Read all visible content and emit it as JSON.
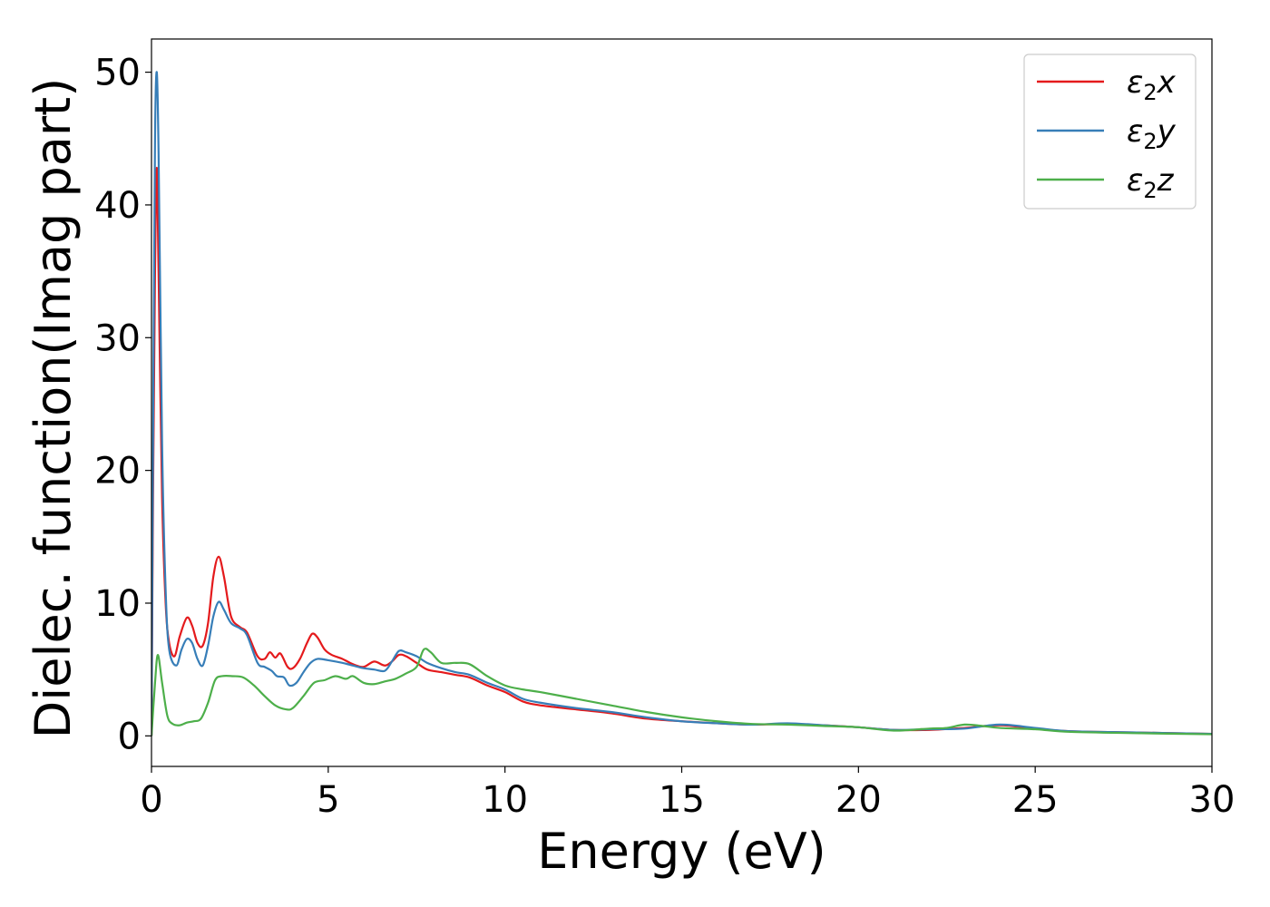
{
  "chart_data": {
    "type": "line",
    "title": "",
    "xlabel": "Energy (eV)",
    "ylabel": "Dielec. function(Imag part)",
    "xlim": [
      0,
      30
    ],
    "ylim": [
      -2.3,
      52.5
    ],
    "xticks": [
      0,
      5,
      10,
      15,
      20,
      25,
      30
    ],
    "yticks": [
      0,
      10,
      20,
      30,
      40,
      50
    ],
    "grid": false,
    "legend_position": "top-right",
    "series": [
      {
        "name": "ε₂x",
        "legend_main": "ε",
        "legend_sub": "2",
        "legend_suffix": "x",
        "color": "#e41a1c",
        "points": [
          [
            0,
            0
          ],
          [
            0.05,
            20
          ],
          [
            0.1,
            35
          ],
          [
            0.15,
            42.8
          ],
          [
            0.2,
            35
          ],
          [
            0.3,
            18
          ],
          [
            0.4,
            10
          ],
          [
            0.5,
            7
          ],
          [
            0.65,
            6
          ],
          [
            0.8,
            7.5
          ],
          [
            1.0,
            8.9
          ],
          [
            1.15,
            8.3
          ],
          [
            1.3,
            7
          ],
          [
            1.45,
            6.8
          ],
          [
            1.6,
            8.5
          ],
          [
            1.75,
            12
          ],
          [
            1.9,
            13.5
          ],
          [
            2.05,
            12
          ],
          [
            2.25,
            9
          ],
          [
            2.5,
            8.2
          ],
          [
            2.7,
            7.8
          ],
          [
            3.0,
            6.0
          ],
          [
            3.2,
            5.8
          ],
          [
            3.35,
            6.3
          ],
          [
            3.5,
            5.9
          ],
          [
            3.65,
            6.2
          ],
          [
            3.85,
            5.2
          ],
          [
            4.0,
            5.1
          ],
          [
            4.2,
            5.8
          ],
          [
            4.4,
            7
          ],
          [
            4.55,
            7.7
          ],
          [
            4.7,
            7.4
          ],
          [
            4.9,
            6.5
          ],
          [
            5.1,
            6.1
          ],
          [
            5.4,
            5.8
          ],
          [
            5.7,
            5.4
          ],
          [
            6.0,
            5.2
          ],
          [
            6.3,
            5.6
          ],
          [
            6.6,
            5.3
          ],
          [
            6.8,
            5.6
          ],
          [
            7.0,
            6.1
          ],
          [
            7.2,
            6.0
          ],
          [
            7.5,
            5.5
          ],
          [
            7.8,
            5.0
          ],
          [
            8.2,
            4.8
          ],
          [
            8.6,
            4.6
          ],
          [
            9.0,
            4.4
          ],
          [
            9.5,
            3.8
          ],
          [
            10.0,
            3.3
          ],
          [
            10.5,
            2.6
          ],
          [
            11.0,
            2.3
          ],
          [
            12.0,
            2.0
          ],
          [
            13.0,
            1.7
          ],
          [
            14.0,
            1.3
          ],
          [
            15.0,
            1.1
          ],
          [
            16.0,
            0.95
          ],
          [
            17.0,
            0.85
          ],
          [
            18.0,
            0.9
          ],
          [
            19.0,
            0.8
          ],
          [
            20.0,
            0.65
          ],
          [
            21.0,
            0.45
          ],
          [
            22.0,
            0.45
          ],
          [
            23.0,
            0.6
          ],
          [
            24.0,
            0.8
          ],
          [
            25.0,
            0.55
          ],
          [
            26.0,
            0.35
          ],
          [
            28.0,
            0.25
          ],
          [
            30.0,
            0.15
          ]
        ]
      },
      {
        "name": "ε₂y",
        "legend_main": "ε",
        "legend_sub": "2",
        "legend_suffix": "y",
        "color": "#377eb8",
        "points": [
          [
            0,
            0
          ],
          [
            0.05,
            25
          ],
          [
            0.1,
            45
          ],
          [
            0.15,
            50
          ],
          [
            0.2,
            44
          ],
          [
            0.3,
            22
          ],
          [
            0.4,
            11
          ],
          [
            0.5,
            6.5
          ],
          [
            0.7,
            5.3
          ],
          [
            0.85,
            6.5
          ],
          [
            1.0,
            7.3
          ],
          [
            1.15,
            7.0
          ],
          [
            1.3,
            5.8
          ],
          [
            1.45,
            5.3
          ],
          [
            1.6,
            6.8
          ],
          [
            1.75,
            9
          ],
          [
            1.9,
            10.1
          ],
          [
            2.05,
            9.5
          ],
          [
            2.25,
            8.5
          ],
          [
            2.5,
            8.1
          ],
          [
            2.7,
            7.6
          ],
          [
            3.0,
            5.5
          ],
          [
            3.2,
            5.2
          ],
          [
            3.4,
            4.9
          ],
          [
            3.55,
            4.5
          ],
          [
            3.75,
            4.4
          ],
          [
            3.9,
            3.8
          ],
          [
            4.1,
            4.0
          ],
          [
            4.3,
            4.8
          ],
          [
            4.5,
            5.5
          ],
          [
            4.7,
            5.8
          ],
          [
            5.0,
            5.7
          ],
          [
            5.4,
            5.5
          ],
          [
            5.7,
            5.3
          ],
          [
            6.0,
            5.1
          ],
          [
            6.3,
            5.0
          ],
          [
            6.6,
            4.9
          ],
          [
            6.8,
            5.6
          ],
          [
            7.0,
            6.4
          ],
          [
            7.2,
            6.3
          ],
          [
            7.5,
            6.0
          ],
          [
            7.8,
            5.5
          ],
          [
            8.2,
            5.1
          ],
          [
            8.6,
            4.8
          ],
          [
            9.0,
            4.6
          ],
          [
            9.5,
            4.0
          ],
          [
            10.0,
            3.5
          ],
          [
            10.5,
            2.8
          ],
          [
            11.0,
            2.5
          ],
          [
            12.0,
            2.1
          ],
          [
            13.0,
            1.8
          ],
          [
            14.0,
            1.4
          ],
          [
            15.0,
            1.1
          ],
          [
            16.0,
            0.95
          ],
          [
            17.0,
            0.85
          ],
          [
            18.0,
            0.95
          ],
          [
            19.0,
            0.8
          ],
          [
            20.0,
            0.65
          ],
          [
            21.0,
            0.45
          ],
          [
            22.0,
            0.5
          ],
          [
            23.0,
            0.55
          ],
          [
            24.0,
            0.85
          ],
          [
            25.0,
            0.6
          ],
          [
            26.0,
            0.35
          ],
          [
            28.0,
            0.25
          ],
          [
            30.0,
            0.15
          ]
        ]
      },
      {
        "name": "ε₂z",
        "legend_main": "ε",
        "legend_sub": "2",
        "legend_suffix": "z",
        "color": "#4daf4a",
        "points": [
          [
            0,
            0
          ],
          [
            0.1,
            4
          ],
          [
            0.18,
            6.1
          ],
          [
            0.3,
            4
          ],
          [
            0.45,
            1.5
          ],
          [
            0.6,
            0.9
          ],
          [
            0.8,
            0.8
          ],
          [
            1.0,
            1.0
          ],
          [
            1.2,
            1.1
          ],
          [
            1.4,
            1.3
          ],
          [
            1.6,
            2.5
          ],
          [
            1.8,
            4.2
          ],
          [
            2.0,
            4.5
          ],
          [
            2.3,
            4.5
          ],
          [
            2.6,
            4.4
          ],
          [
            2.9,
            3.8
          ],
          [
            3.2,
            3.0
          ],
          [
            3.5,
            2.3
          ],
          [
            3.8,
            2.0
          ],
          [
            4.0,
            2.1
          ],
          [
            4.3,
            3.0
          ],
          [
            4.6,
            4.0
          ],
          [
            4.9,
            4.2
          ],
          [
            5.2,
            4.5
          ],
          [
            5.5,
            4.3
          ],
          [
            5.7,
            4.5
          ],
          [
            6.0,
            4.0
          ],
          [
            6.3,
            3.9
          ],
          [
            6.6,
            4.1
          ],
          [
            6.9,
            4.3
          ],
          [
            7.2,
            4.7
          ],
          [
            7.5,
            5.2
          ],
          [
            7.7,
            6.5
          ],
          [
            7.9,
            6.3
          ],
          [
            8.2,
            5.5
          ],
          [
            8.6,
            5.5
          ],
          [
            9.0,
            5.4
          ],
          [
            9.5,
            4.5
          ],
          [
            10.0,
            3.8
          ],
          [
            10.5,
            3.5
          ],
          [
            11.0,
            3.3
          ],
          [
            12.0,
            2.8
          ],
          [
            13.0,
            2.3
          ],
          [
            14.0,
            1.8
          ],
          [
            15.0,
            1.4
          ],
          [
            16.0,
            1.1
          ],
          [
            17.0,
            0.9
          ],
          [
            18.0,
            0.85
          ],
          [
            19.0,
            0.75
          ],
          [
            20.0,
            0.65
          ],
          [
            21.0,
            0.4
          ],
          [
            22.0,
            0.55
          ],
          [
            22.5,
            0.6
          ],
          [
            23.0,
            0.85
          ],
          [
            23.5,
            0.75
          ],
          [
            24.0,
            0.6
          ],
          [
            25.0,
            0.5
          ],
          [
            26.0,
            0.3
          ],
          [
            28.0,
            0.2
          ],
          [
            30.0,
            0.12
          ]
        ]
      }
    ]
  }
}
